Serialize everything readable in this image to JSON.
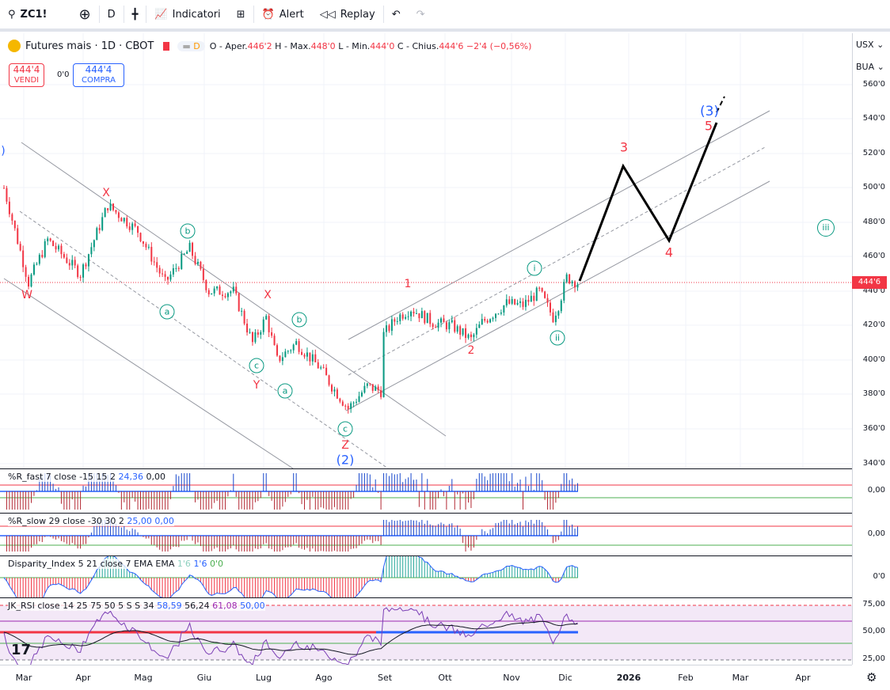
{
  "toolbar": {
    "symbol": "ZC1!",
    "interval": "D",
    "indicators": "Indicatori",
    "alert": "Alert",
    "replay": "Replay"
  },
  "legend": {
    "title": "Futures mais · 1D · CBOT",
    "d_badge": "D",
    "o_label": "O - Aper.",
    "o": "446'2",
    "h_label": "H - Max.",
    "h": "448'0",
    "l_label": "L - Min.",
    "l": "444'0",
    "c_label": "C - Chius.",
    "c": "444'6",
    "change": "−2'4 (−0,56%)"
  },
  "trade": {
    "sell_price": "444'4",
    "sell_label": "VENDI",
    "spread": "0'0",
    "buy_price": "444'4",
    "buy_label": "COMPRA"
  },
  "axis": {
    "currency": "USX",
    "unit": "BUA",
    "price_labels": [
      "560'0",
      "540'0",
      "520'0",
      "500'0",
      "480'0",
      "460'0",
      "440'0",
      "420'0",
      "400'0",
      "380'0",
      "360'0",
      "340'0"
    ],
    "current_price": "444'6",
    "pane_labels": [
      "0,00",
      "0,00",
      "0'0",
      "75,00",
      "50,00",
      "25,00"
    ]
  },
  "time_labels": [
    "Mar",
    "Apr",
    "Mag",
    "Giu",
    "Lug",
    "Ago",
    "Set",
    "Ott",
    "Nov",
    "Dic",
    "2026",
    "Feb",
    "Mar",
    "Apr"
  ],
  "panes": {
    "rfast": {
      "name": "%R_fast 7 close -15 15 2",
      "v1": "24,36",
      "v2": "0,00"
    },
    "rslow": {
      "name": "%R_slow 29 close -30 30 2",
      "v1": "25,00",
      "v2": "0,00"
    },
    "disp": {
      "name": "Disparity_Index 5 21 close 7 EMA EMA",
      "v1": "1'6",
      "v2": "1'6",
      "v3": "0'0"
    },
    "jk": {
      "name": "JK_RSI close 14 25 75 50 5 S S 34",
      "v1": "58,59",
      "v2": "56,24",
      "v3": "61,08",
      "v4": "50,00"
    }
  },
  "waves": {
    "w": "W",
    "x1": "X",
    "x2": "X",
    "y": "Y",
    "z": "Z",
    "w2": "(2)",
    "w3big": "(3)",
    "n1": "1",
    "n2": "2",
    "n3": "3",
    "n4": "4",
    "n5": "5",
    "a1": "a",
    "b1": "b",
    "c1": "c",
    "a2": "a",
    "b2": "b",
    "c2": "c",
    "i": "i",
    "ii": "ii",
    "iii": "iii",
    "paren": ")"
  },
  "chart_data": {
    "type": "candlestick",
    "symbol": "ZC1!",
    "ylim": [
      340,
      560
    ],
    "key_closes": [
      [
        0,
        500
      ],
      [
        9,
        445
      ],
      [
        16,
        470
      ],
      [
        28,
        450
      ],
      [
        38,
        490
      ],
      [
        49,
        475
      ],
      [
        59,
        445
      ],
      [
        68,
        465
      ],
      [
        75,
        440
      ],
      [
        84,
        440
      ],
      [
        91,
        410
      ],
      [
        96,
        425
      ],
      [
        100,
        400
      ],
      [
        107,
        410
      ],
      [
        116,
        395
      ],
      [
        120,
        385
      ],
      [
        126,
        372
      ],
      [
        133,
        385
      ],
      [
        138,
        382
      ],
      [
        139,
        415
      ],
      [
        144,
        425
      ],
      [
        149,
        430
      ],
      [
        157,
        422
      ],
      [
        164,
        420
      ],
      [
        171,
        412
      ],
      [
        175,
        422
      ],
      [
        184,
        433
      ],
      [
        190,
        432
      ],
      [
        196,
        440
      ],
      [
        201,
        425
      ],
      [
        203,
        432
      ],
      [
        206,
        448
      ],
      [
        210,
        445
      ]
    ]
  },
  "colors": {
    "up": "#089981",
    "down": "#f23645",
    "wave_red": "#f23645",
    "wave_blue": "#2962ff"
  }
}
